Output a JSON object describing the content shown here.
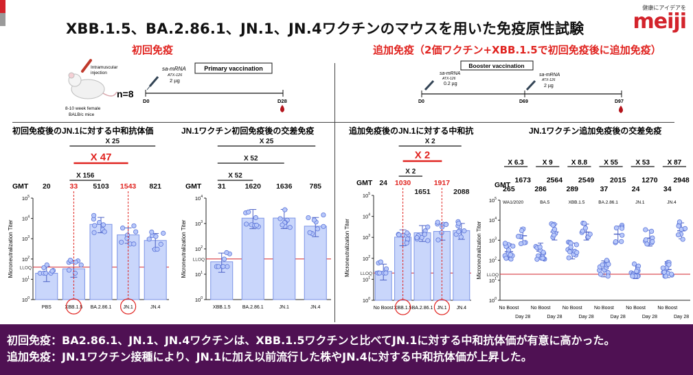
{
  "header": {
    "title": "XBB.1.5、BA.2.86.1、JN.1、JN.4ワクチンのマウスを用いた免疫原性試験",
    "brand_tagline": "健康にアイデアを",
    "brand_logo": "meiji"
  },
  "primary": {
    "section_title": "初回免疫",
    "schedule": {
      "route_label_1": "Intramuscular",
      "route_label_2": "injection",
      "mice_1": "8-10 week female",
      "mice_2": "BALB/c mice",
      "n": "n=8",
      "box": "Primary vaccination",
      "vaccine_name": "sa-mRNA",
      "vaccine_sub": "ATX-126",
      "dose": "2 µg",
      "d0": "D0",
      "d28": "D28"
    }
  },
  "booster": {
    "section_title": "追加免疫（2価ワクチン+XBB.1.5で初回免疫後に追加免疫）",
    "schedule": {
      "box": "Booster vaccination",
      "vaccine_name": "sa-mRNA",
      "vaccine_sub": "ATX-126",
      "dose1": "0.2 µg",
      "dose2": "2 µg",
      "d0": "D0",
      "d69": "D69",
      "d97": "D97"
    }
  },
  "chart_data": [
    {
      "type": "bar",
      "title": "初回免疫後のJN.1に対する中和抗体価",
      "ylabel": "Microneutralization Titer",
      "yscale": "log",
      "ylim": [
        1,
        100000
      ],
      "lloq_label": "LLOQ",
      "lloq": 40,
      "gmt_label": "GMT",
      "categories": [
        "PBS",
        "XBB.1.5",
        "BA.2.86.1",
        "JN.1",
        "JN.4"
      ],
      "values": [
        20,
        33,
        5103,
        1543,
        821
      ],
      "gmt_text": [
        "20",
        "33",
        "5103",
        "1543",
        "821"
      ],
      "circled": [
        "XBB.1.5",
        "JN.1"
      ],
      "comparisons": [
        {
          "label": "X 25",
          "from": "XBB.1.5",
          "to": "JN.4"
        },
        {
          "label": "X 47",
          "from": "XBB.1.5",
          "to": "JN.1",
          "highlight": true
        },
        {
          "label": "X 156",
          "from": "XBB.1.5",
          "to": "BA.2.86.1"
        }
      ]
    },
    {
      "type": "bar",
      "title": "JN.1ワクチン初回免疫後の交差免疫",
      "ylabel": "Microneutralization Titer",
      "yscale": "log",
      "ylim": [
        1,
        10000
      ],
      "lloq_label": "LLOQ",
      "lloq": 40,
      "gmt_label": "GMT",
      "categories": [
        "XBB.1.5",
        "BA.2.86.1",
        "JN.1",
        "JN.4"
      ],
      "values": [
        31,
        1620,
        1636,
        785
      ],
      "gmt_text": [
        "31",
        "1620",
        "1636",
        "785"
      ],
      "comparisons": [
        {
          "label": "X 25",
          "from": "XBB.1.5",
          "to": "JN.4"
        },
        {
          "label": "X 52",
          "from": "XBB.1.5",
          "to": "JN.1"
        },
        {
          "label": "X 52",
          "from": "XBB.1.5",
          "to": "BA.2.86.1"
        }
      ]
    },
    {
      "type": "bar",
      "title": "追加免疫後のJN.1に対する中和抗体価",
      "ylabel": "Microneutralization Titer",
      "yscale": "log",
      "ylim": [
        1,
        100000
      ],
      "lloq_label": "LLOQ",
      "lloq": 20,
      "gmt_label": "GMT",
      "categories": [
        "No Boost",
        "XBB.1.5",
        "BA.2.86.1",
        "JN.1",
        "JN.4"
      ],
      "values": [
        24,
        1030,
        1651,
        1917,
        2088
      ],
      "gmt_text": [
        "24",
        "1030",
        "1651",
        "1917",
        "2088"
      ],
      "circled": [
        "XBB.1.5",
        "JN.1"
      ],
      "comparisons": [
        {
          "label": "X 2",
          "from": "XBB.1.5",
          "to": "JN.4"
        },
        {
          "label": "X 2",
          "from": "XBB.1.5",
          "to": "JN.1",
          "highlight": true
        },
        {
          "label": "X 2",
          "from": "XBB.1.5",
          "to": "BA.2.86.1"
        }
      ]
    },
    {
      "type": "bar",
      "title": "JN.1ワクチン追加免疫後の交差免疫",
      "ylabel": "Microneutralization Titer",
      "yscale": "log",
      "ylim": [
        1,
        100000
      ],
      "lloq_label": "LLOQ",
      "lloq": 20,
      "gmt_label": "GMT",
      "groups": [
        "WA1/2020",
        "BA.5",
        "XBB.1.5",
        "BA.2.86.1",
        "JN.1",
        "JN.4"
      ],
      "folds": [
        "X 6.3",
        "X 9",
        "X 8.8",
        "X 55",
        "X 53",
        "X 87"
      ],
      "nb_values": [
        265,
        286,
        289,
        37,
        24,
        34
      ],
      "d28_values": [
        1673,
        2564,
        2549,
        2015,
        1270,
        2948
      ],
      "tick_nb_1": "No Boost",
      "tick_d28_1": "Day 28"
    }
  ],
  "footer": {
    "line1": "初回免疫：BA2.86.1、JN.1、JN.4ワクチンは、XBB.1.5ワクチンと比べてJN.1に対する中和抗体価が有意に高かった。",
    "line2": "追加免疫：JN.1ワクチン接種により、JN.1に加え以前流行した株やJN.4に対する中和抗体価が上昇した。"
  },
  "colors": {
    "bar_fill": "#c9d6fb",
    "bar_stroke": "#7b93e6",
    "dot_fill": "#b8c8fa",
    "dot_stroke": "#5b74d8",
    "lloq": "#d3232b",
    "highlight": "#e0231f"
  }
}
